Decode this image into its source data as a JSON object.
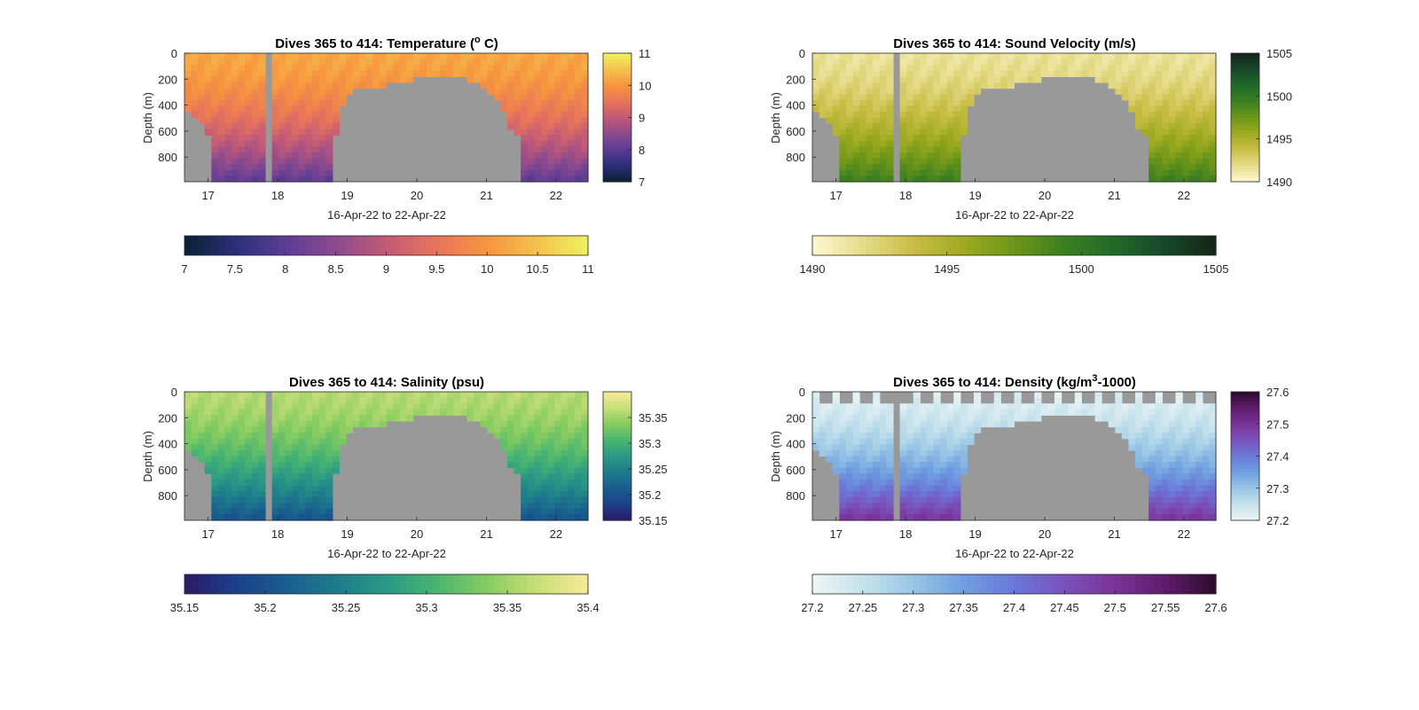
{
  "figure": {
    "background": "#ffffff",
    "nodata_color": "#999999"
  },
  "chart_data": [
    {
      "type": "heatmap",
      "variable": "temperature",
      "title": "Dives 365 to 414: Temperature (",
      "title_sup": "o",
      "title_tail": " C)",
      "xlabel": "16-Apr-22 to 22-Apr-22",
      "ylabel": "Depth (m)",
      "xticks": [
        "17",
        "18",
        "19",
        "20",
        "21",
        "22"
      ],
      "xtick_values": [
        17,
        18,
        19,
        20,
        21,
        22
      ],
      "xlim": [
        16.66,
        22.46
      ],
      "yticks": [
        "0",
        "200",
        "400",
        "600",
        "800"
      ],
      "ytick_values": [
        0,
        200,
        400,
        600,
        800
      ],
      "ylim": [
        0,
        990
      ],
      "colorbar_v": {
        "ticks": [
          "7",
          "8",
          "9",
          "10",
          "11"
        ],
        "values": [
          7,
          8,
          9,
          10,
          11
        ],
        "range": [
          7,
          11
        ]
      },
      "colorbar_h": {
        "ticks": [
          "7",
          "7.5",
          "8",
          "8.5",
          "9",
          "9.5",
          "10",
          "10.5",
          "11"
        ],
        "values": [
          7,
          7.5,
          8,
          8.5,
          9,
          9.5,
          10,
          10.5,
          11
        ],
        "range": [
          7,
          11
        ]
      },
      "colormap": [
        "#0a2030",
        "#2a2f7a",
        "#5c3c96",
        "#8c4a8e",
        "#c25a78",
        "#e8745a",
        "#f7953f",
        "#f5c24c",
        "#eef260"
      ],
      "surface_value": 10.2,
      "deep_value": 8.0,
      "near_surface_offset": 0,
      "gaps_top": "none",
      "gaps_bottom": "none"
    },
    {
      "type": "heatmap",
      "variable": "sound_velocity",
      "title": "Dives 365 to 414: Sound Velocity (m/s)",
      "xlabel": "16-Apr-22 to 22-Apr-22",
      "ylabel": "Depth (m)",
      "xticks": [
        "17",
        "18",
        "19",
        "20",
        "21",
        "22"
      ],
      "xtick_values": [
        17,
        18,
        19,
        20,
        21,
        22
      ],
      "xlim": [
        16.66,
        22.46
      ],
      "yticks": [
        "0",
        "200",
        "400",
        "600",
        "800"
      ],
      "ytick_values": [
        0,
        200,
        400,
        600,
        800
      ],
      "ylim": [
        0,
        990
      ],
      "colorbar_v": {
        "ticks": [
          "1490",
          "1495",
          "1500",
          "1505"
        ],
        "values": [
          1490,
          1495,
          1500,
          1505
        ],
        "range": [
          1490,
          1505
        ]
      },
      "colorbar_h": {
        "ticks": [
          "1490",
          "1495",
          "1500",
          "1505"
        ],
        "values": [
          1490,
          1495,
          1500,
          1505
        ],
        "range": [
          1490,
          1505
        ]
      },
      "colormap": [
        "#fdf8d2",
        "#e6dc8a",
        "#c9bd45",
        "#9eaa20",
        "#6c9618",
        "#3c7f22",
        "#1e6a2a",
        "#17472a",
        "#152418"
      ],
      "surface_value": 1491.5,
      "deep_value": 1499.5,
      "near_surface_offset": 0,
      "gaps_top": "none",
      "gaps_bottom": "none"
    },
    {
      "type": "heatmap",
      "variable": "salinity",
      "title": "Dives 365 to 414: Salinity (psu)",
      "xlabel": "16-Apr-22 to 22-Apr-22",
      "ylabel": "Depth (m)",
      "xticks": [
        "17",
        "18",
        "19",
        "20",
        "21",
        "22"
      ],
      "xtick_values": [
        17,
        18,
        19,
        20,
        21,
        22
      ],
      "xlim": [
        16.66,
        22.46
      ],
      "yticks": [
        "0",
        "200",
        "400",
        "600",
        "800"
      ],
      "ytick_values": [
        0,
        200,
        400,
        600,
        800
      ],
      "ylim": [
        0,
        990
      ],
      "colorbar_v": {
        "ticks": [
          "35.15",
          "35.2",
          "35.25",
          "35.3",
          "35.35"
        ],
        "values": [
          35.15,
          35.2,
          35.25,
          35.3,
          35.35
        ],
        "range": [
          35.15,
          35.4
        ]
      },
      "colorbar_h": {
        "ticks": [
          "35.15",
          "35.2",
          "35.25",
          "35.3",
          "35.35",
          "35.4"
        ],
        "values": [
          35.15,
          35.2,
          35.25,
          35.3,
          35.35,
          35.4
        ],
        "range": [
          35.15,
          35.4
        ]
      },
      "colormap": [
        "#2a1a66",
        "#1c3f8a",
        "#195d8e",
        "#1e7b8c",
        "#2a9985",
        "#4ab56f",
        "#86cc60",
        "#c8df78",
        "#f8ea98"
      ],
      "surface_value": 35.36,
      "deep_value": 35.2,
      "near_surface_offset": 0,
      "gaps_top": "none",
      "gaps_bottom": "none"
    },
    {
      "type": "heatmap",
      "variable": "density",
      "title": "Dives 365 to 414: Density (kg/m",
      "title_sup": "3",
      "title_tail": "-1000)",
      "xlabel": "16-Apr-22 to 22-Apr-22",
      "ylabel": "Depth (m)",
      "xticks": [
        "17",
        "18",
        "19",
        "20",
        "21",
        "22"
      ],
      "xtick_values": [
        17,
        18,
        19,
        20,
        21,
        22
      ],
      "xlim": [
        16.66,
        22.46
      ],
      "yticks": [
        "0",
        "200",
        "400",
        "600",
        "800"
      ],
      "ytick_values": [
        0,
        200,
        400,
        600,
        800
      ],
      "ylim": [
        0,
        990
      ],
      "colorbar_v": {
        "ticks": [
          "27.2",
          "27.3",
          "27.4",
          "27.5",
          "27.6"
        ],
        "values": [
          27.2,
          27.3,
          27.4,
          27.5,
          27.6
        ],
        "range": [
          27.2,
          27.6
        ]
      },
      "colorbar_h": {
        "ticks": [
          "27.2",
          "27.25",
          "27.3",
          "27.35",
          "27.4",
          "27.45",
          "27.5",
          "27.55",
          "27.6"
        ],
        "values": [
          27.2,
          27.25,
          27.3,
          27.35,
          27.4,
          27.45,
          27.5,
          27.55,
          27.6
        ],
        "range": [
          27.2,
          27.6
        ]
      },
      "colormap": [
        "#eef6f6",
        "#c6e2ec",
        "#98c6e6",
        "#6f9fe0",
        "#6a78d8",
        "#7a52bc",
        "#7a3298",
        "#5e1c6a",
        "#2c0a2c"
      ],
      "surface_value": 27.22,
      "deep_value": 27.5,
      "near_surface_offset": 1,
      "gaps_top": "density",
      "gaps_bottom": "none"
    }
  ]
}
